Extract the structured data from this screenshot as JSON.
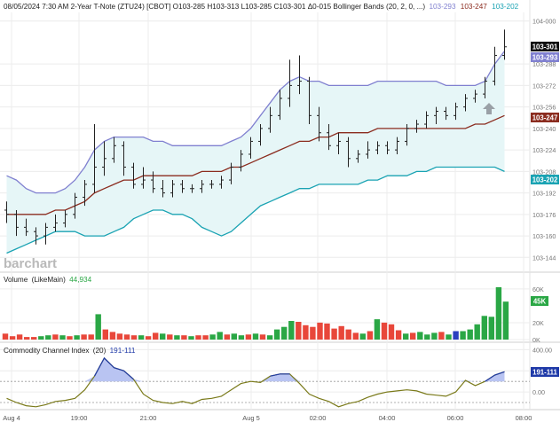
{
  "header": {
    "info": "08/05/2024 7:30 AM 2-Year T-Note (ZTU24) [CBOT] O103-285 H103-313 L103-285 C103-301 Δ0-015 Bollinger Bands  (20, 2, 0, ...)",
    "bb_upper": "103-293",
    "bb_mid": "103-247",
    "bb_lower": "103-202"
  },
  "watermark": "barchart",
  "colors": {
    "bb_upper": "#8080d0",
    "bb_mid": "#8b2c1f",
    "bb_lower": "#1aa3b3",
    "bb_fill": "#e6f6f7",
    "vol_up": "#2aa745",
    "vol_down": "#e8473a",
    "vol_neutral": "#2a3fbf",
    "cci_line": "#7a7a1a",
    "cci_fill": "#b9c4f2",
    "cci_stroke": "#1f3aa8",
    "price_badge": "#111111",
    "arrow": "#9aa0a6"
  },
  "price_badges": {
    "last": "103-301",
    "upper": "103-293",
    "mid": "103-247",
    "lower": "103-202"
  },
  "volume_badge": "45K",
  "cci_badge": "191-111",
  "volume_panel": {
    "title": "Volume",
    "study": "(LikeMain)",
    "value": "44,934"
  },
  "cci_panel": {
    "title": "Commodity Channel Index",
    "study": "(20)",
    "value": "191-111"
  },
  "x_axis": {
    "ticks": [
      "Aug 4",
      "19:00",
      "21:00",
      "Aug 5",
      "02:00",
      "04:00",
      "06:00",
      "08:00"
    ]
  },
  "chart_data": [
    {
      "type": "ohlc",
      "title": "2-Year T-Note (ZTU24) [CBOT]",
      "y_tick_labels": [
        "104-000",
        "103-288",
        "103-272",
        "103-256",
        "103-240",
        "103-224",
        "103-208",
        "103-192",
        "103-176",
        "103-160",
        "103-144"
      ],
      "y_tick_values": [
        104.0,
        103.9,
        103.85,
        103.8,
        103.75,
        103.7,
        103.65,
        103.6,
        103.55,
        103.5,
        103.45
      ],
      "ylim": [
        103.43,
        104.02
      ],
      "bars": [
        {
          "o": 103.56,
          "h": 103.58,
          "l": 103.53,
          "c": 103.55
        },
        {
          "o": 103.55,
          "h": 103.56,
          "l": 103.5,
          "c": 103.52
        },
        {
          "o": 103.52,
          "h": 103.54,
          "l": 103.5,
          "c": 103.51
        },
        {
          "o": 103.51,
          "h": 103.52,
          "l": 103.48,
          "c": 103.5
        },
        {
          "o": 103.5,
          "h": 103.53,
          "l": 103.48,
          "c": 103.52
        },
        {
          "o": 103.52,
          "h": 103.55,
          "l": 103.51,
          "c": 103.53
        },
        {
          "o": 103.53,
          "h": 103.56,
          "l": 103.52,
          "c": 103.55
        },
        {
          "o": 103.55,
          "h": 103.6,
          "l": 103.54,
          "c": 103.59
        },
        {
          "o": 103.59,
          "h": 103.63,
          "l": 103.57,
          "c": 103.62
        },
        {
          "o": 103.62,
          "h": 103.76,
          "l": 103.6,
          "c": 103.66
        },
        {
          "o": 103.66,
          "h": 103.72,
          "l": 103.64,
          "c": 103.68
        },
        {
          "o": 103.68,
          "h": 103.73,
          "l": 103.67,
          "c": 103.71
        },
        {
          "o": 103.71,
          "h": 103.72,
          "l": 103.64,
          "c": 103.66
        },
        {
          "o": 103.66,
          "h": 103.67,
          "l": 103.61,
          "c": 103.62
        },
        {
          "o": 103.62,
          "h": 103.66,
          "l": 103.61,
          "c": 103.63
        },
        {
          "o": 103.63,
          "h": 103.65,
          "l": 103.6,
          "c": 103.61
        },
        {
          "o": 103.61,
          "h": 103.63,
          "l": 103.59,
          "c": 103.6
        },
        {
          "o": 103.6,
          "h": 103.63,
          "l": 103.59,
          "c": 103.62
        },
        {
          "o": 103.62,
          "h": 103.63,
          "l": 103.6,
          "c": 103.61
        },
        {
          "o": 103.61,
          "h": 103.62,
          "l": 103.6,
          "c": 103.61
        },
        {
          "o": 103.61,
          "h": 103.63,
          "l": 103.6,
          "c": 103.62
        },
        {
          "o": 103.62,
          "h": 103.63,
          "l": 103.61,
          "c": 103.62
        },
        {
          "o": 103.62,
          "h": 103.64,
          "l": 103.61,
          "c": 103.63
        },
        {
          "o": 103.63,
          "h": 103.67,
          "l": 103.62,
          "c": 103.66
        },
        {
          "o": 103.66,
          "h": 103.7,
          "l": 103.65,
          "c": 103.69
        },
        {
          "o": 103.69,
          "h": 103.73,
          "l": 103.68,
          "c": 103.72
        },
        {
          "o": 103.72,
          "h": 103.76,
          "l": 103.71,
          "c": 103.75
        },
        {
          "o": 103.75,
          "h": 103.8,
          "l": 103.74,
          "c": 103.78
        },
        {
          "o": 103.78,
          "h": 103.84,
          "l": 103.77,
          "c": 103.82
        },
        {
          "o": 103.82,
          "h": 103.91,
          "l": 103.8,
          "c": 103.85
        },
        {
          "o": 103.85,
          "h": 103.92,
          "l": 103.83,
          "c": 103.86
        },
        {
          "o": 103.86,
          "h": 103.87,
          "l": 103.76,
          "c": 103.78
        },
        {
          "o": 103.78,
          "h": 103.8,
          "l": 103.72,
          "c": 103.74
        },
        {
          "o": 103.74,
          "h": 103.76,
          "l": 103.7,
          "c": 103.71
        },
        {
          "o": 103.71,
          "h": 103.74,
          "l": 103.69,
          "c": 103.72
        },
        {
          "o": 103.72,
          "h": 103.73,
          "l": 103.66,
          "c": 103.68
        },
        {
          "o": 103.68,
          "h": 103.7,
          "l": 103.67,
          "c": 103.69
        },
        {
          "o": 103.69,
          "h": 103.72,
          "l": 103.68,
          "c": 103.7
        },
        {
          "o": 103.7,
          "h": 103.72,
          "l": 103.69,
          "c": 103.71
        },
        {
          "o": 103.71,
          "h": 103.72,
          "l": 103.69,
          "c": 103.7
        },
        {
          "o": 103.7,
          "h": 103.73,
          "l": 103.69,
          "c": 103.72
        },
        {
          "o": 103.72,
          "h": 103.76,
          "l": 103.71,
          "c": 103.75
        },
        {
          "o": 103.75,
          "h": 103.77,
          "l": 103.74,
          "c": 103.76
        },
        {
          "o": 103.76,
          "h": 103.79,
          "l": 103.75,
          "c": 103.78
        },
        {
          "o": 103.78,
          "h": 103.8,
          "l": 103.76,
          "c": 103.79
        },
        {
          "o": 103.79,
          "h": 103.8,
          "l": 103.77,
          "c": 103.78
        },
        {
          "o": 103.78,
          "h": 103.81,
          "l": 103.77,
          "c": 103.8
        },
        {
          "o": 103.8,
          "h": 103.83,
          "l": 103.79,
          "c": 103.82
        },
        {
          "o": 103.82,
          "h": 103.84,
          "l": 103.81,
          "c": 103.83
        },
        {
          "o": 103.83,
          "h": 103.87,
          "l": 103.82,
          "c": 103.86
        },
        {
          "o": 103.86,
          "h": 103.94,
          "l": 103.85,
          "c": 103.92
        },
        {
          "o": 103.92,
          "h": 103.98,
          "l": 103.91,
          "c": 103.94
        }
      ],
      "bb_upper": [
        103.64,
        103.63,
        103.61,
        103.6,
        103.6,
        103.6,
        103.61,
        103.63,
        103.66,
        103.7,
        103.72,
        103.73,
        103.73,
        103.73,
        103.73,
        103.72,
        103.72,
        103.71,
        103.71,
        103.71,
        103.71,
        103.71,
        103.71,
        103.72,
        103.73,
        103.75,
        103.78,
        103.81,
        103.84,
        103.86,
        103.87,
        103.86,
        103.86,
        103.85,
        103.85,
        103.85,
        103.85,
        103.85,
        103.86,
        103.86,
        103.86,
        103.86,
        103.86,
        103.86,
        103.86,
        103.85,
        103.85,
        103.85,
        103.85,
        103.86,
        103.9,
        103.93
      ],
      "bb_mid": [
        103.55,
        103.55,
        103.55,
        103.55,
        103.55,
        103.56,
        103.56,
        103.57,
        103.58,
        103.6,
        103.61,
        103.62,
        103.63,
        103.63,
        103.64,
        103.64,
        103.64,
        103.64,
        103.64,
        103.64,
        103.65,
        103.65,
        103.65,
        103.66,
        103.66,
        103.67,
        103.68,
        103.69,
        103.7,
        103.71,
        103.72,
        103.72,
        103.73,
        103.73,
        103.74,
        103.74,
        103.74,
        103.74,
        103.75,
        103.75,
        103.75,
        103.75,
        103.75,
        103.75,
        103.75,
        103.75,
        103.75,
        103.75,
        103.76,
        103.76,
        103.77,
        103.78
      ],
      "bb_lower": [
        103.46,
        103.47,
        103.48,
        103.49,
        103.5,
        103.51,
        103.51,
        103.51,
        103.5,
        103.5,
        103.5,
        103.51,
        103.52,
        103.54,
        103.55,
        103.56,
        103.56,
        103.55,
        103.55,
        103.54,
        103.52,
        103.51,
        103.5,
        103.51,
        103.53,
        103.55,
        103.57,
        103.58,
        103.59,
        103.6,
        103.61,
        103.61,
        103.62,
        103.62,
        103.62,
        103.62,
        103.62,
        103.63,
        103.63,
        103.64,
        103.64,
        103.64,
        103.65,
        103.65,
        103.66,
        103.66,
        103.66,
        103.66,
        103.66,
        103.66,
        103.66,
        103.65
      ]
    },
    {
      "type": "bar",
      "title": "Volume",
      "y_tick_labels": [
        "60K",
        "20K",
        "0K"
      ],
      "y_tick_values": [
        60000,
        20000,
        0
      ],
      "ylim": [
        0,
        64000
      ],
      "values": [
        7000,
        4000,
        6000,
        3000,
        3000,
        4000,
        5000,
        6000,
        5000,
        4000,
        5000,
        6000,
        6000,
        30000,
        12000,
        9000,
        7000,
        6000,
        5000,
        5000,
        4000,
        8000,
        7000,
        6000,
        5000,
        5000,
        4000,
        5000,
        5000,
        6000,
        9000,
        6000,
        7000,
        5000,
        6000,
        7000,
        6000,
        5000,
        12000,
        15000,
        22000,
        21000,
        17000,
        15000,
        20000,
        19000,
        13000,
        16000,
        12000,
        8000,
        7000,
        10000,
        24000,
        20000,
        18000,
        11000,
        7000,
        8000,
        9000,
        6000,
        8000,
        9000,
        6000,
        10000,
        10000,
        12000,
        18000,
        28000,
        27000,
        62000,
        44934
      ],
      "colors": [
        "down",
        "down",
        "down",
        "down",
        "down",
        "up",
        "up",
        "down",
        "up",
        "down",
        "up",
        "down",
        "down",
        "up",
        "down",
        "down",
        "down",
        "down",
        "down",
        "up",
        "down",
        "down",
        "up",
        "down",
        "up",
        "down",
        "up",
        "down",
        "down",
        "up",
        "up",
        "down",
        "up",
        "up",
        "down",
        "up",
        "down",
        "up",
        "up",
        "up",
        "up",
        "down",
        "down",
        "down",
        "down",
        "down",
        "down",
        "down",
        "down",
        "down",
        "up",
        "down",
        "up",
        "down",
        "down",
        "down",
        "up",
        "down",
        "up",
        "up",
        "up",
        "down",
        "up",
        "neutral",
        "up",
        "up",
        "up",
        "up",
        "up",
        "up",
        "up"
      ]
    },
    {
      "type": "line",
      "title": "Commodity Channel Index (20)",
      "y_tick_labels": [
        "400.00",
        "200.00",
        "0.00"
      ],
      "y_tick_values": [
        400,
        200,
        0
      ],
      "ylim": [
        -150,
        420
      ],
      "reference_lines": [
        100,
        -100
      ],
      "values": [
        -60,
        -100,
        -130,
        -140,
        -120,
        -90,
        -80,
        -60,
        20,
        150,
        320,
        230,
        200,
        120,
        -20,
        -80,
        -100,
        -110,
        -90,
        -110,
        -70,
        -60,
        -40,
        20,
        80,
        100,
        90,
        150,
        170,
        170,
        80,
        -20,
        -60,
        -90,
        -140,
        -110,
        -90,
        -50,
        -20,
        0,
        10,
        20,
        10,
        -20,
        -30,
        -40,
        0,
        110,
        60,
        100,
        160,
        191
      ]
    }
  ]
}
